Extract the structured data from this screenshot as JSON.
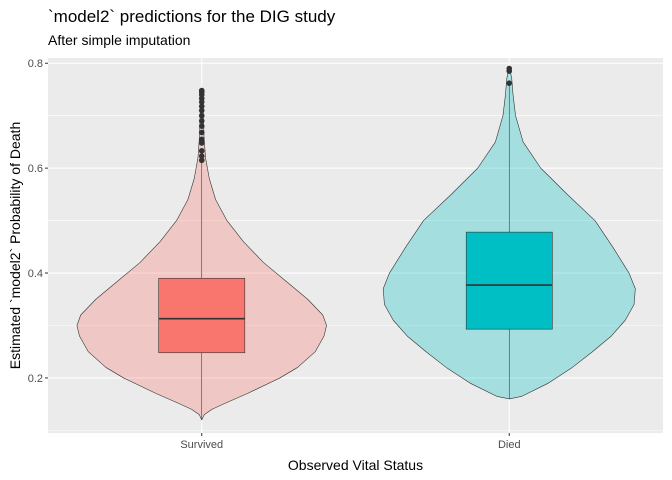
{
  "chart_data": {
    "type": "violin",
    "title": "`model2` predictions for the DIG study",
    "subtitle": "After simple imputation",
    "xlabel": "Observed Vital Status",
    "ylabel": "Estimated `model2` Probability of Death",
    "categories": [
      "Survived",
      "Died"
    ],
    "ylim": [
      0.095,
      0.81
    ],
    "yticks": [
      0.2,
      0.4,
      0.6,
      0.8
    ],
    "ytick_labels": [
      "0.2",
      "0.4",
      "0.6",
      "0.8"
    ],
    "grid": true,
    "background": "#EBEBEB",
    "groups": [
      {
        "name": "Survived",
        "fill_color": "#F8766D",
        "violin_alpha": 0.3,
        "min": 0.12,
        "q1": 0.248,
        "median": 0.313,
        "q3": 0.39,
        "max": 0.61,
        "outliers": [
          0.615,
          0.623,
          0.633,
          0.648,
          0.655,
          0.668,
          0.68,
          0.69,
          0.7,
          0.71,
          0.718,
          0.726,
          0.733,
          0.74,
          0.745,
          0.748
        ],
        "density": [
          [
            0.12,
            0.0
          ],
          [
            0.13,
            0.02
          ],
          [
            0.14,
            0.08
          ],
          [
            0.15,
            0.17
          ],
          [
            0.17,
            0.36
          ],
          [
            0.2,
            0.62
          ],
          [
            0.22,
            0.76
          ],
          [
            0.25,
            0.9
          ],
          [
            0.28,
            0.97
          ],
          [
            0.3,
            0.99
          ],
          [
            0.32,
            0.96
          ],
          [
            0.35,
            0.84
          ],
          [
            0.38,
            0.69
          ],
          [
            0.42,
            0.49
          ],
          [
            0.46,
            0.33
          ],
          [
            0.5,
            0.2
          ],
          [
            0.54,
            0.11
          ],
          [
            0.58,
            0.06
          ],
          [
            0.62,
            0.03
          ],
          [
            0.66,
            0.018
          ],
          [
            0.7,
            0.013
          ],
          [
            0.74,
            0.01
          ],
          [
            0.75,
            0.0
          ]
        ]
      },
      {
        "name": "Died",
        "fill_color": "#00BFC4",
        "violin_alpha": 0.3,
        "min": 0.16,
        "q1": 0.293,
        "median": 0.377,
        "q3": 0.478,
        "max": 0.76,
        "outliers": [
          0.762,
          0.785,
          0.79
        ],
        "density": [
          [
            0.16,
            0.0
          ],
          [
            0.165,
            0.1
          ],
          [
            0.19,
            0.31
          ],
          [
            0.22,
            0.5
          ],
          [
            0.25,
            0.66
          ],
          [
            0.28,
            0.81
          ],
          [
            0.31,
            0.92
          ],
          [
            0.34,
            0.99
          ],
          [
            0.37,
            1.0
          ],
          [
            0.4,
            0.95
          ],
          [
            0.45,
            0.82
          ],
          [
            0.5,
            0.68
          ],
          [
            0.55,
            0.46
          ],
          [
            0.6,
            0.25
          ],
          [
            0.65,
            0.11
          ],
          [
            0.7,
            0.05
          ],
          [
            0.74,
            0.03
          ],
          [
            0.77,
            0.02
          ],
          [
            0.795,
            0.0
          ]
        ]
      }
    ]
  }
}
